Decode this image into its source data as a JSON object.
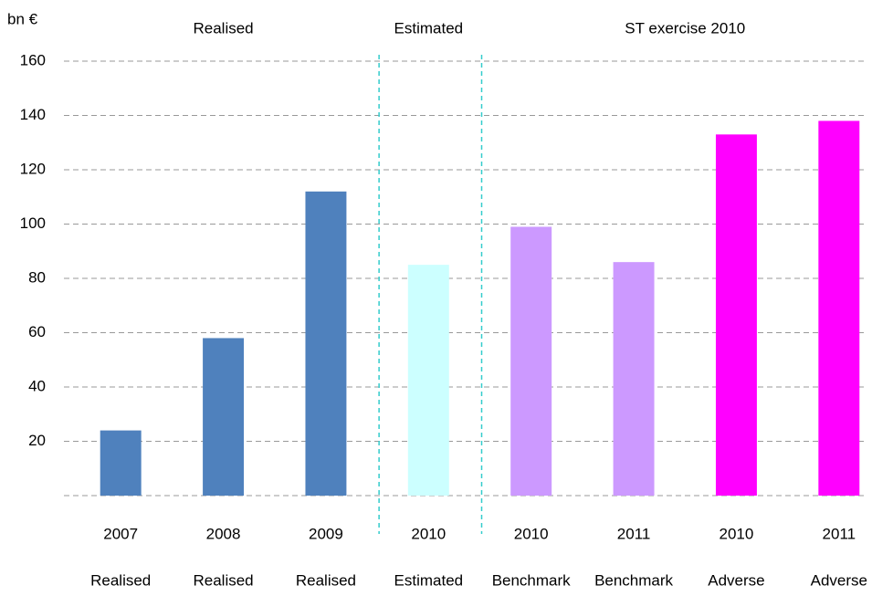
{
  "chart_data": {
    "type": "bar",
    "y_label": "bn €",
    "categories": [
      "2007",
      "2008",
      "2009",
      "2010",
      "2010",
      "2011",
      "2010",
      "2011"
    ],
    "category_labels": [
      "Realised",
      "Realised",
      "Realised",
      "Estimated",
      "Benchmark",
      "Benchmark",
      "Adverse",
      "Adverse"
    ],
    "values": [
      24,
      58,
      112,
      85,
      99,
      86,
      133,
      138
    ],
    "colors": [
      "#4f81bd",
      "#4f81bd",
      "#4f81bd",
      "#ccffff",
      "#cc99ff",
      "#cc99ff",
      "#ff00ff",
      "#ff00ff"
    ],
    "sections": [
      {
        "label": "Realised",
        "first": 0,
        "last": 2
      },
      {
        "label": "Estimated",
        "first": 3,
        "last": 3
      },
      {
        "label": "ST exercise 2010",
        "first": 4,
        "last": 7
      }
    ],
    "ylim": [
      0,
      160
    ],
    "yticks": [
      20,
      40,
      60,
      80,
      100,
      120,
      140,
      160
    ],
    "grid": true
  }
}
